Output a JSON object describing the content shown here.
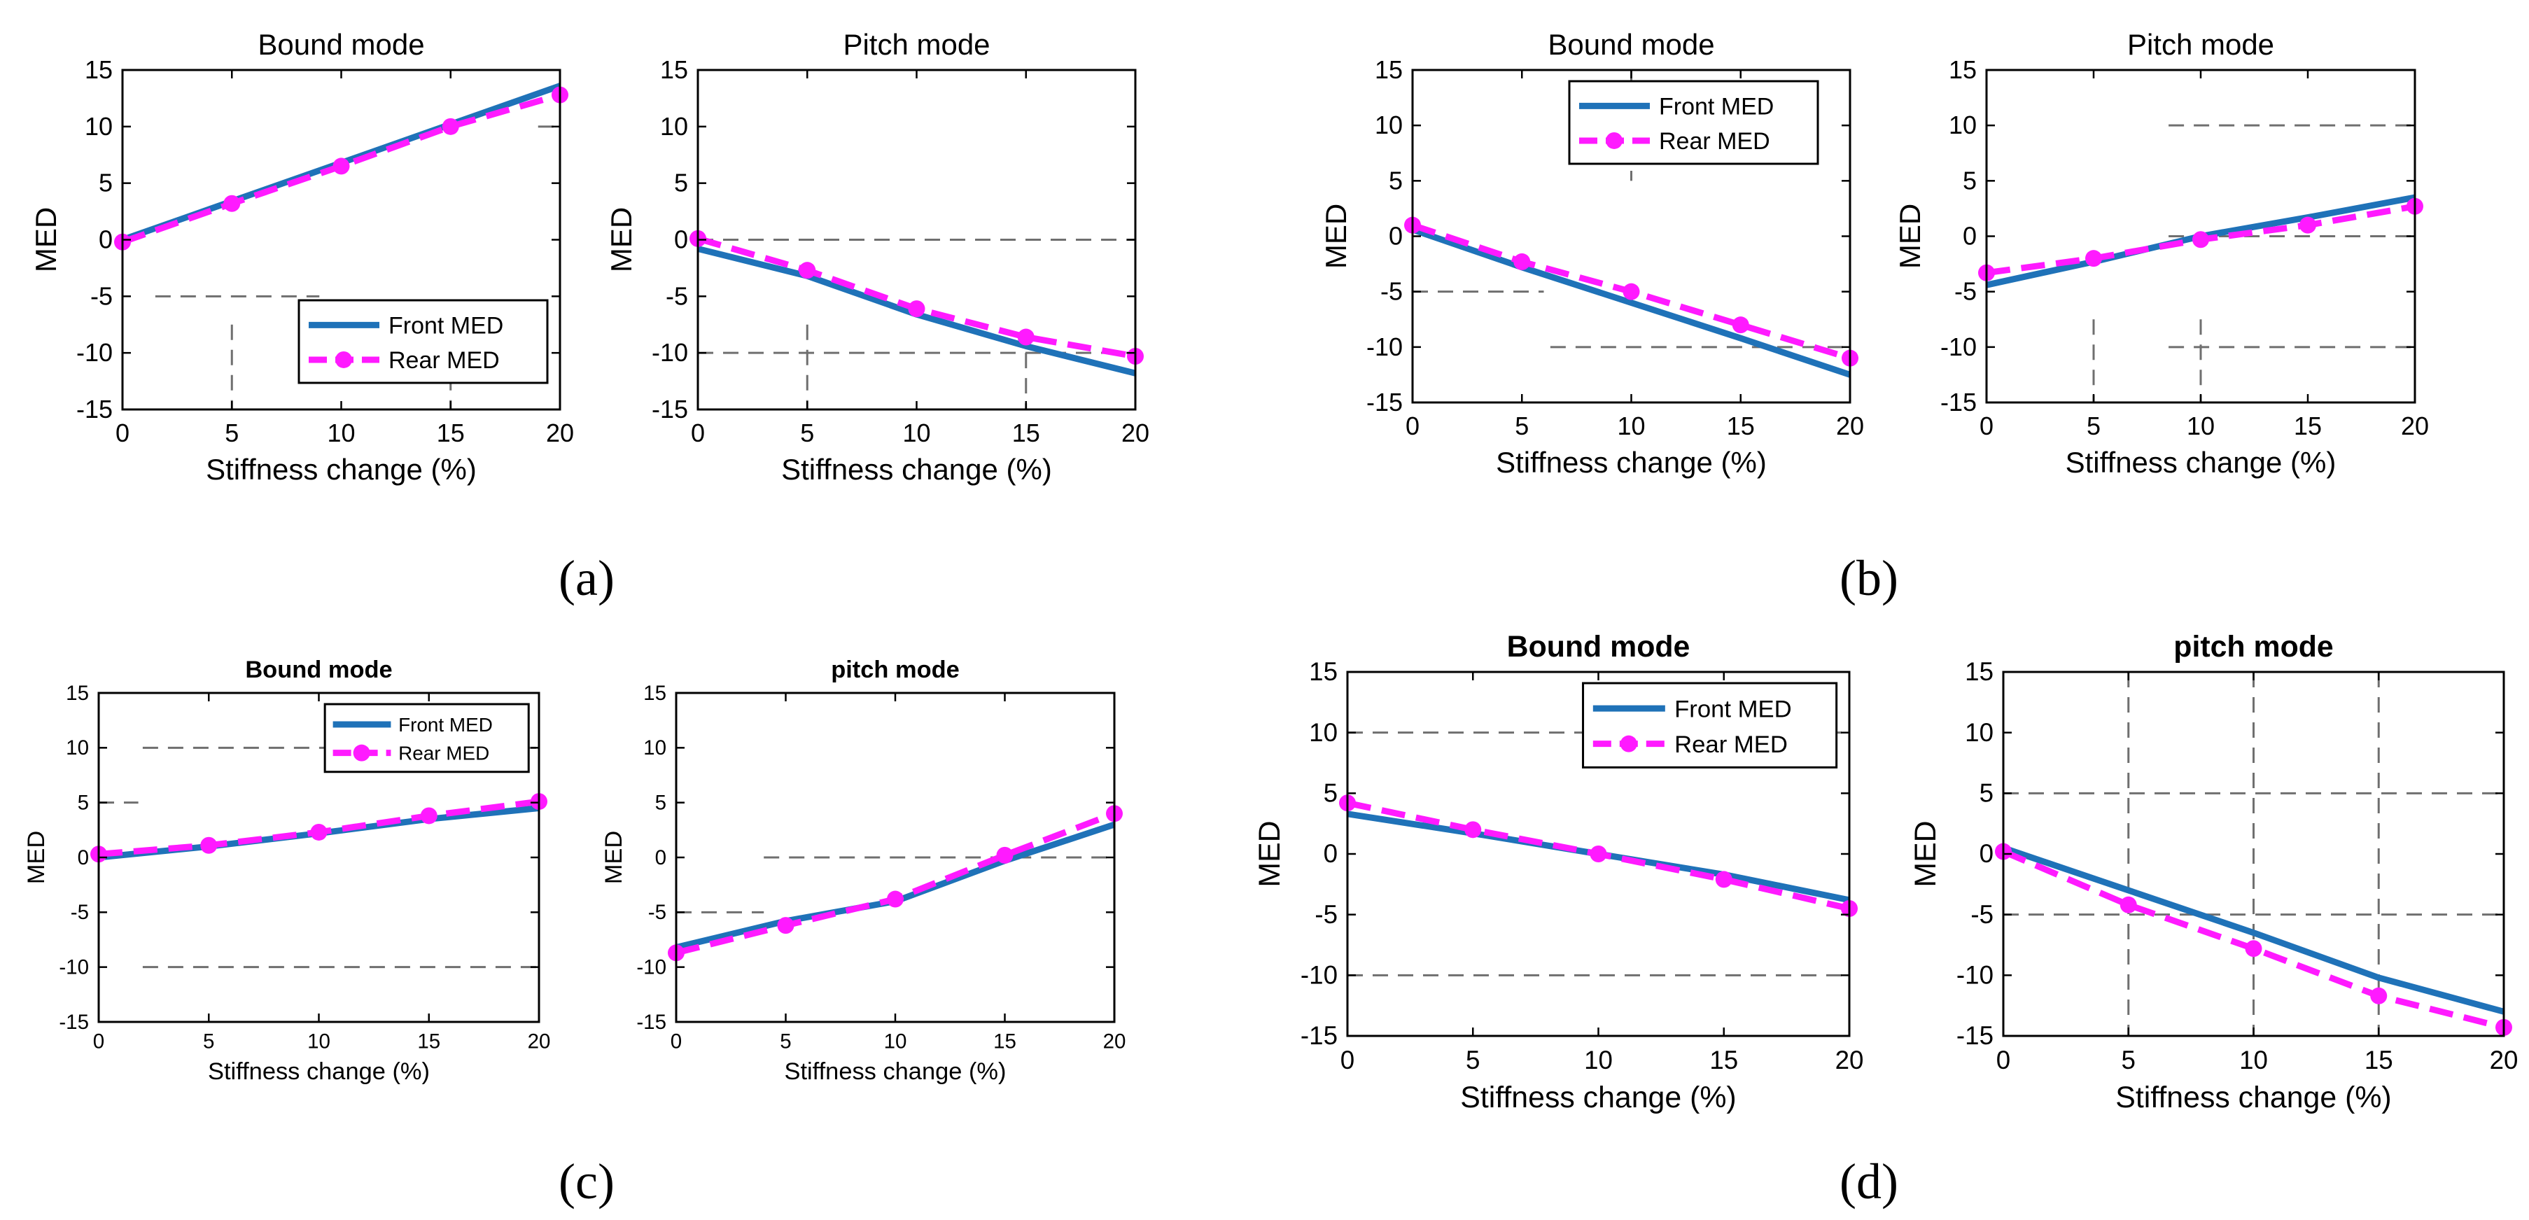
{
  "figure": {
    "panel_labels": [
      "(a)",
      "(b)",
      "(c)",
      "(d)"
    ]
  },
  "colors": {
    "front": "#1f72b8",
    "rear": "#ff1aff",
    "grid": "#6f6f6f",
    "axis": "#000000"
  },
  "chart_data": [
    {
      "panel": "(a)",
      "type": "line",
      "title": "Bound mode",
      "xlabel": "Stiffness change (%)",
      "ylabel": "MED",
      "x": [
        0,
        5,
        10,
        15,
        20
      ],
      "xlim": [
        0,
        20
      ],
      "ylim": [
        -15,
        15
      ],
      "xticks": [
        "0",
        "5",
        "10",
        "15",
        "20"
      ],
      "yticks": [
        "15",
        "10",
        "5",
        "0",
        "-5",
        "-10",
        "-15"
      ],
      "legend": {
        "position": "bottom-right",
        "entries": [
          "Front MED",
          "Rear MED"
        ]
      },
      "series": [
        {
          "name": "Front MED",
          "values": [
            0,
            3.4,
            6.8,
            10.2,
            13.6
          ]
        },
        {
          "name": "Rear MED",
          "values": [
            -0.2,
            3.2,
            6.5,
            10.0,
            12.8
          ]
        }
      ]
    },
    {
      "panel": "(a)",
      "type": "line",
      "title": "Pitch mode",
      "xlabel": "Stiffness change (%)",
      "ylabel": "MED",
      "x": [
        0,
        5,
        10,
        15,
        20
      ],
      "xlim": [
        0,
        20
      ],
      "ylim": [
        -15,
        15
      ],
      "xticks": [
        "0",
        "5",
        "10",
        "15",
        "20"
      ],
      "yticks": [
        "15",
        "10",
        "5",
        "0",
        "-5",
        "-10",
        "-15"
      ],
      "legend": null,
      "series": [
        {
          "name": "Front MED",
          "values": [
            -0.8,
            -3.2,
            -6.6,
            -9.4,
            -11.8
          ]
        },
        {
          "name": "Rear MED",
          "values": [
            0.1,
            -2.7,
            -6.1,
            -8.6,
            -10.3
          ]
        }
      ]
    },
    {
      "panel": "(b)",
      "type": "line",
      "title": "Bound mode",
      "xlabel": "Stiffness change (%)",
      "ylabel": "MED",
      "x": [
        0,
        5,
        10,
        15,
        20
      ],
      "xlim": [
        0,
        20
      ],
      "ylim": [
        -15,
        15
      ],
      "xticks": [
        "0",
        "5",
        "10",
        "15",
        "20"
      ],
      "yticks": [
        "15",
        "10",
        "5",
        "0",
        "-5",
        "-10",
        "-15"
      ],
      "legend": {
        "position": "top-right",
        "entries": [
          "Front MED",
          "Rear MED"
        ]
      },
      "series": [
        {
          "name": "Front MED",
          "values": [
            0.6,
            -2.8,
            -6.0,
            -9.2,
            -12.5
          ]
        },
        {
          "name": "Rear MED",
          "values": [
            1.0,
            -2.3,
            -5.0,
            -8.0,
            -11.0
          ]
        }
      ]
    },
    {
      "panel": "(b)",
      "type": "line",
      "title": "Pitch mode",
      "xlabel": "Stiffness change (%)",
      "ylabel": "MED",
      "x": [
        0,
        5,
        10,
        15,
        20
      ],
      "xlim": [
        0,
        20
      ],
      "ylim": [
        -15,
        15
      ],
      "xticks": [
        "0",
        "5",
        "10",
        "15",
        "20"
      ],
      "yticks": [
        "15",
        "10",
        "5",
        "0",
        "-5",
        "-10",
        "-15"
      ],
      "legend": null,
      "series": [
        {
          "name": "Front MED",
          "values": [
            -4.4,
            -2.3,
            0.0,
            1.7,
            3.5
          ]
        },
        {
          "name": "Rear MED",
          "values": [
            -3.3,
            -2.0,
            -0.3,
            1.0,
            2.7
          ]
        }
      ]
    },
    {
      "panel": "(c)",
      "type": "line",
      "title": "Bound mode",
      "xlabel": "Stiffness change (%)",
      "ylabel": "MED",
      "x": [
        0,
        5,
        10,
        15,
        20
      ],
      "xlim": [
        0,
        20
      ],
      "ylim": [
        -15,
        15
      ],
      "xticks": [
        "0",
        "5",
        "10",
        "15",
        "20"
      ],
      "yticks": [
        "15",
        "10",
        "5",
        "0",
        "-5",
        "-10",
        "-15"
      ],
      "legend": {
        "position": "top-right",
        "entries": [
          "Front MED",
          "Rear MED"
        ]
      },
      "series": [
        {
          "name": "Front MED",
          "values": [
            0,
            1.0,
            2.2,
            3.5,
            4.5
          ]
        },
        {
          "name": "Rear MED",
          "values": [
            0.3,
            1.1,
            2.3,
            3.8,
            5.1
          ]
        }
      ]
    },
    {
      "panel": "(c)",
      "type": "line",
      "title": "pitch mode",
      "xlabel": "Stiffness change (%)",
      "ylabel": "MED",
      "x": [
        0,
        5,
        10,
        15,
        20
      ],
      "xlim": [
        0,
        20
      ],
      "ylim": [
        -15,
        15
      ],
      "xticks": [
        "0",
        "5",
        "10",
        "15",
        "20"
      ],
      "yticks": [
        "15",
        "10",
        "5",
        "0",
        "-5",
        "-10",
        "-15"
      ],
      "legend": null,
      "series": [
        {
          "name": "Front MED",
          "values": [
            -8.2,
            -5.8,
            -4.0,
            -0.3,
            3.0
          ]
        },
        {
          "name": "Rear MED",
          "values": [
            -8.7,
            -6.2,
            -3.8,
            0.2,
            4.0
          ]
        }
      ]
    },
    {
      "panel": "(d)",
      "type": "line",
      "title": "Bound mode",
      "xlabel": "Stiffness change (%)",
      "ylabel": "MED",
      "x": [
        0,
        5,
        10,
        15,
        20
      ],
      "xlim": [
        0,
        20
      ],
      "ylim": [
        -15,
        15
      ],
      "xticks": [
        "0",
        "5",
        "10",
        "15",
        "20"
      ],
      "yticks": [
        "15",
        "10",
        "5",
        "0",
        "-5",
        "-10",
        "-15"
      ],
      "legend": {
        "position": "top-right",
        "entries": [
          "Front MED",
          "Rear MED"
        ]
      },
      "series": [
        {
          "name": "Front MED",
          "values": [
            3.3,
            1.7,
            0.0,
            -1.7,
            -3.8
          ]
        },
        {
          "name": "Rear MED",
          "values": [
            4.2,
            2.0,
            0.0,
            -2.1,
            -4.5
          ]
        }
      ]
    },
    {
      "panel": "(d)",
      "type": "line",
      "title": "pitch mode",
      "xlabel": "Stiffness change (%)",
      "ylabel": "MED",
      "x": [
        0,
        5,
        10,
        15,
        20
      ],
      "xlim": [
        0,
        20
      ],
      "ylim": [
        -15,
        15
      ],
      "xticks": [
        "0",
        "5",
        "10",
        "15",
        "20"
      ],
      "yticks": [
        "15",
        "10",
        "5",
        "0",
        "-5",
        "-10",
        "-15"
      ],
      "legend": null,
      "series": [
        {
          "name": "Front MED",
          "values": [
            0.5,
            -3.0,
            -6.5,
            -10.2,
            -13.0
          ]
        },
        {
          "name": "Rear MED",
          "values": [
            0.2,
            -4.2,
            -7.8,
            -11.7,
            -14.3
          ]
        }
      ]
    }
  ]
}
